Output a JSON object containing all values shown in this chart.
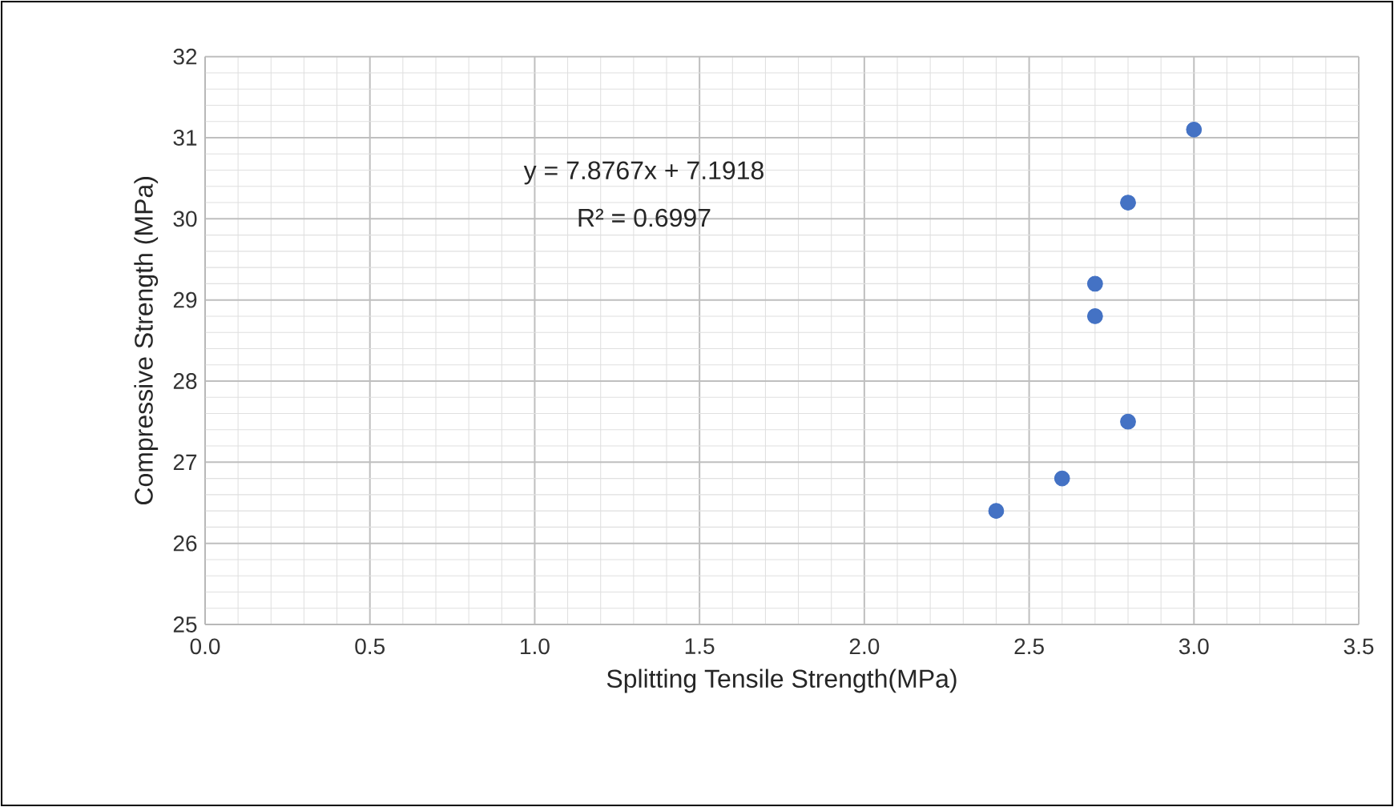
{
  "chart_data": {
    "type": "scatter",
    "xlabel": "Splitting Tensile Strength(MPa)",
    "ylabel": "Compressive Strength (MPa)",
    "annotations": [
      "y = 7.8767x + 7.1918",
      "R² = 0.6997"
    ],
    "x": [
      2.4,
      2.6,
      2.7,
      2.7,
      2.8,
      2.8,
      3.0
    ],
    "series": [
      {
        "color": "#4472c4",
        "values": [
          26.4,
          26.8,
          28.8,
          29.2,
          27.5,
          30.2,
          31.1
        ]
      }
    ],
    "xlim": [
      0,
      3.5
    ],
    "ylim": [
      25,
      32
    ],
    "xticks": [
      {
        "value": 0,
        "label": "0.0"
      },
      {
        "value": 0.5,
        "label": "0.5"
      },
      {
        "value": 1,
        "label": "1.0"
      },
      {
        "value": 1.5,
        "label": "1.5"
      },
      {
        "value": 2,
        "label": "2.0"
      },
      {
        "value": 2.5,
        "label": "2.5"
      },
      {
        "value": 3,
        "label": "3.0"
      },
      {
        "value": 3.5,
        "label": "3.5"
      }
    ],
    "yticks": [
      25,
      26,
      27,
      28,
      29,
      30,
      31,
      32
    ],
    "grid": true,
    "marker": "circle"
  }
}
